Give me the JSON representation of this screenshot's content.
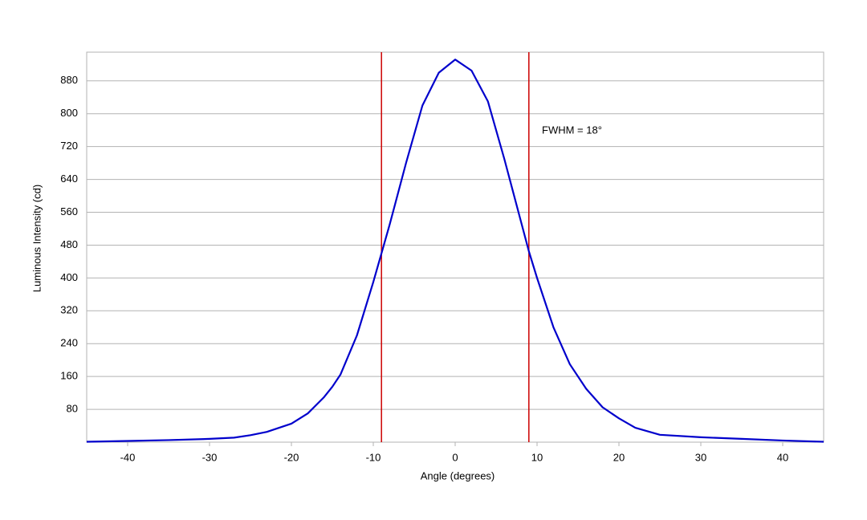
{
  "chart_data": {
    "type": "line",
    "x_label": "Angle (degrees)",
    "y_label": "Luminous Intensity (cd)",
    "annotation": "FWHM = 18°",
    "xlim": [
      -45,
      45
    ],
    "xticks": [
      -40,
      -30,
      -20,
      -10,
      0,
      10,
      20,
      30,
      40
    ],
    "ylim": [
      0,
      950
    ],
    "yticks": [
      80,
      160,
      240,
      320,
      400,
      480,
      560,
      640,
      720,
      800,
      880
    ],
    "grid": true,
    "vlines": [
      {
        "x": -9,
        "color": "#cc0000"
      },
      {
        "x": 9,
        "color": "#cc0000"
      }
    ],
    "series": [
      {
        "color": "#0000cc",
        "x": [
          -45,
          -40,
          -35,
          -30,
          -27,
          -25,
          -23,
          -20,
          -18,
          -16,
          -15,
          -14,
          -12,
          -10,
          -9,
          -8,
          -6,
          -4,
          -2,
          0,
          2,
          4,
          6,
          8,
          9,
          10,
          12,
          14,
          16,
          18,
          20,
          22,
          25,
          30,
          35,
          40,
          45
        ],
        "values": [
          1,
          3,
          5,
          8,
          11,
          17,
          25,
          45,
          70,
          110,
          135,
          165,
          260,
          390,
          460,
          530,
          680,
          820,
          900,
          932,
          905,
          830,
          690,
          540,
          465,
          400,
          280,
          190,
          130,
          85,
          58,
          35,
          18,
          12,
          8,
          4,
          1
        ]
      }
    ]
  }
}
